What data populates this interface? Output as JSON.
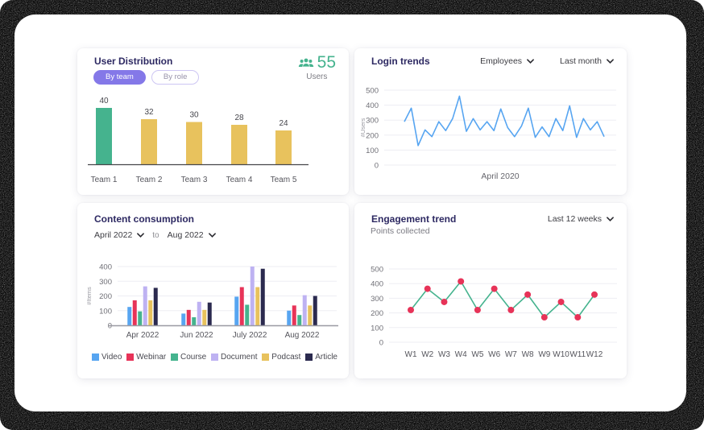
{
  "user_distribution": {
    "title": "User Distribution",
    "toggle": {
      "active": "By team",
      "inactive": "By role"
    },
    "stat": {
      "value": "55",
      "label": "Users",
      "icon": "users-icon",
      "color": "#45b38e"
    },
    "chart_data": {
      "type": "bar",
      "categories": [
        "Team 1",
        "Team 2",
        "Team 3",
        "Team 4",
        "Team 5"
      ],
      "values": [
        40,
        32,
        30,
        28,
        24
      ],
      "colors": [
        "#45b38e",
        "#e8c25d",
        "#e8c25d",
        "#e8c25d",
        "#e8c25d"
      ],
      "ylim": [
        0,
        40
      ],
      "value_labels": true,
      "grid": false
    }
  },
  "login_trends": {
    "title": "Login trends",
    "filters": [
      "Employees",
      "Last month"
    ],
    "chart_data": {
      "type": "line",
      "x_label": "April 2020",
      "y_label": "#Users",
      "y_ticks": [
        0,
        100,
        200,
        300,
        400,
        500
      ],
      "ylim": [
        0,
        500
      ],
      "line_color": "#57a5f1",
      "grid": true,
      "values": [
        290,
        380,
        130,
        235,
        190,
        290,
        230,
        310,
        460,
        225,
        310,
        235,
        290,
        230,
        375,
        250,
        190,
        260,
        380,
        185,
        255,
        190,
        310,
        230,
        395,
        185,
        310,
        235,
        290,
        190
      ]
    }
  },
  "content_consumption": {
    "title": "Content consumption",
    "range": {
      "from": "April 2022",
      "separator": "to",
      "to": "Aug 2022"
    },
    "chart_data": {
      "type": "bar",
      "categories": [
        "Apr 2022",
        "Jun 2022",
        "July 2022",
        "Aug 2022"
      ],
      "y_label": "#Items",
      "y_ticks": [
        0,
        100,
        200,
        300,
        400
      ],
      "ylim": [
        0,
        400
      ],
      "grid": true,
      "legend_position": "bottom",
      "series": [
        {
          "name": "Video",
          "color": "#57a5f1",
          "values": [
            125,
            80,
            195,
            100
          ]
        },
        {
          "name": "Webinar",
          "color": "#e73358",
          "values": [
            170,
            105,
            260,
            135
          ]
        },
        {
          "name": "Course",
          "color": "#45b38e",
          "values": [
            95,
            55,
            140,
            70
          ]
        },
        {
          "name": "Document",
          "color": "#beb2f2",
          "values": [
            265,
            160,
            400,
            205
          ]
        },
        {
          "name": "Podcast",
          "color": "#e8c25d",
          "values": [
            170,
            105,
            260,
            135
          ]
        },
        {
          "name": "Article",
          "color": "#2b2a4f",
          "values": [
            255,
            155,
            385,
            200
          ]
        }
      ]
    }
  },
  "engagement_trend": {
    "title": "Engagement trend",
    "subtitle": "Points collected",
    "filter": "Last 12 weeks",
    "chart_data": {
      "type": "line",
      "categories": [
        "W1",
        "W2",
        "W3",
        "W4",
        "W5",
        "W6",
        "W7",
        "W8",
        "W9",
        "W10",
        "W11",
        "W12"
      ],
      "values": [
        220,
        365,
        275,
        415,
        220,
        365,
        220,
        325,
        170,
        275,
        170,
        325
      ],
      "y_ticks": [
        0,
        100,
        200,
        300,
        400,
        500
      ],
      "ylim": [
        0,
        500
      ],
      "line_color": "#45b38e",
      "point_color": "#e73358",
      "grid": true
    }
  }
}
